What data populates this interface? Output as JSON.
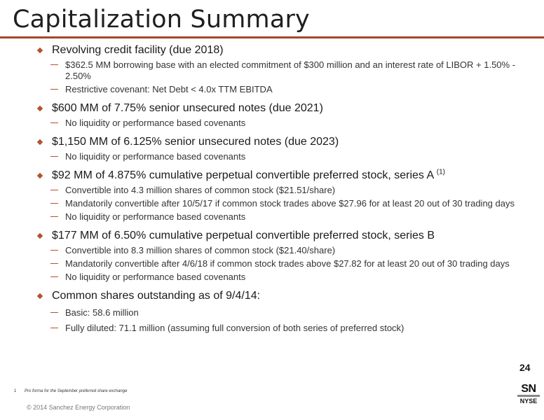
{
  "title": "Capitalization Summary",
  "sections": [
    {
      "heading": "Revolving credit facility (due 2018)",
      "items": [
        "$362.5 MM borrowing base with an elected commitment of $300 million and an interest rate of LIBOR + 1.50% - 2.50%",
        "Restrictive covenant: Net Debt < 4.0x TTM EBITDA"
      ]
    },
    {
      "heading": "$600 MM of 7.75% senior unsecured notes (due 2021)",
      "items": [
        "No liquidity or performance based covenants"
      ]
    },
    {
      "heading": "$1,150 MM of 6.125% senior unsecured notes (due 2023)",
      "items": [
        "No liquidity or performance based covenants"
      ]
    },
    {
      "heading": "$92 MM of 4.875% cumulative perpetual convertible preferred stock, series A",
      "heading_sup": "(1)",
      "items": [
        "Convertible into 4.3 million shares of common stock ($21.51/share)",
        "Mandatorily convertible after 10/5/17 if common stock trades above $27.96 for at least 20 out of 30 trading days",
        "No liquidity or performance based covenants"
      ]
    },
    {
      "heading": "$177 MM of 6.50% cumulative perpetual convertible preferred stock, series B",
      "items": [
        "Convertible into 8.3 million shares of common stock ($21.40/share)",
        "Mandatorily convertible after 4/6/18 if common stock trades above $27.82 for at least 20 out of 30 trading days",
        "No liquidity or performance based covenants"
      ]
    },
    {
      "heading": "Common shares outstanding as of 9/4/14:",
      "items": [
        "Basic: 58.6 million",
        "Fully diluted: 71.1 million (assuming full conversion of both series of preferred stock)"
      ]
    }
  ],
  "page_number": "24",
  "footnote": {
    "number": "1",
    "text": "Pro forma for the September preferred share exchange"
  },
  "copyright": "© 2014 Sanchez Energy Corporation",
  "logo": {
    "ticker": "SN",
    "exchange": "NYSE"
  },
  "colors": {
    "accent": "#b3532f",
    "rule": "#a3472b"
  }
}
